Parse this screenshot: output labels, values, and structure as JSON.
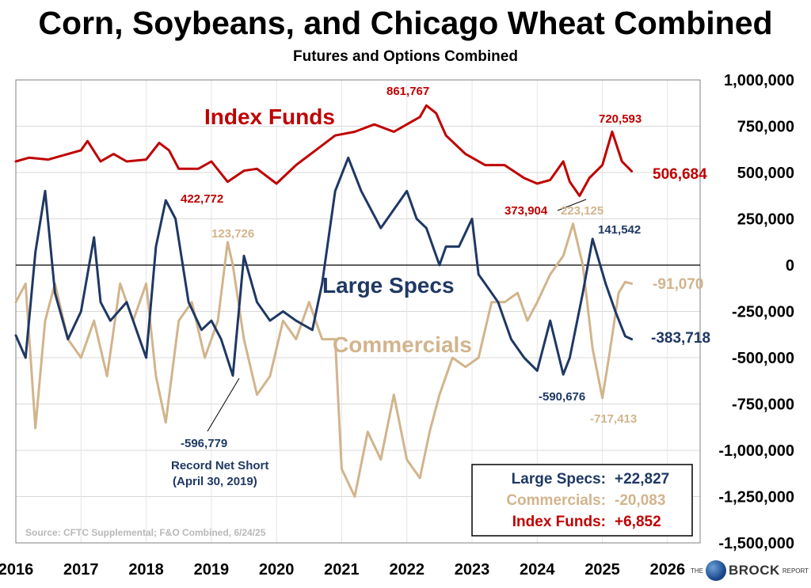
{
  "chart_data": {
    "type": "line",
    "title": "Corn, Soybeans, and Chicago Wheat Combined",
    "subtitle": "Futures and Options Combined",
    "source": "Source: CFTC Supplemental; F&O Combined, 6/24/25",
    "x_ticks": [
      "2016",
      "2017",
      "2018",
      "2019",
      "2020",
      "2021",
      "2022",
      "2023",
      "2024",
      "2025",
      "2026"
    ],
    "y_ticks": [
      "1,000,000",
      "750,000",
      "500,000",
      "250,000",
      "0",
      "-250,000",
      "-500,000",
      "-750,000",
      "-1,000,000",
      "-1,250,000",
      "-1,500,000"
    ],
    "xlim": [
      2016.0,
      2026.5
    ],
    "ylim": [
      -1500000,
      1000000
    ],
    "grid": true,
    "series": [
      {
        "name": "Index Funds",
        "color": "#c00000",
        "x": [
          2016.0,
          2016.2,
          2016.5,
          2016.8,
          2017.0,
          2017.1,
          2017.3,
          2017.5,
          2017.7,
          2018.0,
          2018.2,
          2018.35,
          2018.5,
          2018.8,
          2019.0,
          2019.25,
          2019.5,
          2019.7,
          2020.0,
          2020.3,
          2020.6,
          2020.9,
          2021.2,
          2021.5,
          2021.8,
          2022.0,
          2022.2,
          2022.3,
          2022.45,
          2022.6,
          2022.9,
          2023.2,
          2023.5,
          2023.8,
          2024.0,
          2024.2,
          2024.4,
          2024.5,
          2024.65,
          2024.8,
          2025.0,
          2025.15,
          2025.3,
          2025.45
        ],
        "values": [
          560000,
          580000,
          570000,
          600000,
          620000,
          670000,
          560000,
          600000,
          560000,
          570000,
          660000,
          620000,
          520000,
          520000,
          560000,
          450000,
          510000,
          520000,
          440000,
          540000,
          620000,
          700000,
          720000,
          760000,
          720000,
          760000,
          800000,
          861767,
          820000,
          700000,
          600000,
          540000,
          540000,
          470000,
          440000,
          460000,
          560000,
          450000,
          373904,
          470000,
          540000,
          720593,
          560000,
          506684
        ]
      },
      {
        "name": "Large Specs",
        "color": "#1f3864",
        "x": [
          2016.0,
          2016.15,
          2016.3,
          2016.45,
          2016.6,
          2016.8,
          2017.0,
          2017.2,
          2017.3,
          2017.45,
          2017.7,
          2017.9,
          2018.0,
          2018.15,
          2018.3,
          2018.45,
          2018.65,
          2018.85,
          2019.0,
          2019.15,
          2019.33,
          2019.5,
          2019.7,
          2019.9,
          2020.1,
          2020.3,
          2020.55,
          2020.7,
          2020.9,
          2021.1,
          2021.3,
          2021.6,
          2021.8,
          2022.0,
          2022.15,
          2022.3,
          2022.5,
          2022.6,
          2022.8,
          2023.0,
          2023.1,
          2023.2,
          2023.4,
          2023.6,
          2023.8,
          2024.0,
          2024.2,
          2024.4,
          2024.5,
          2024.7,
          2024.85,
          2025.05,
          2025.2,
          2025.35,
          2025.45
        ],
        "values": [
          -380000,
          -500000,
          70000,
          400000,
          -150000,
          -400000,
          -250000,
          150000,
          -200000,
          -300000,
          -200000,
          -400000,
          -500000,
          100000,
          350000,
          250000,
          -200000,
          -350000,
          -300000,
          -400000,
          -596779,
          50000,
          -200000,
          -300000,
          -250000,
          -300000,
          -350000,
          -100000,
          400000,
          580000,
          400000,
          200000,
          300000,
          400000,
          250000,
          200000,
          0,
          100000,
          100000,
          250000,
          -50000,
          -100000,
          -200000,
          -400000,
          -500000,
          -570000,
          -300000,
          -590676,
          -500000,
          -150000,
          141542,
          -100000,
          -250000,
          -383718,
          -400000
        ]
      },
      {
        "name": "Commercials",
        "color": "#d2b48c",
        "x": [
          2016.0,
          2016.15,
          2016.3,
          2016.45,
          2016.6,
          2016.8,
          2017.0,
          2017.2,
          2017.4,
          2017.6,
          2017.8,
          2018.0,
          2018.15,
          2018.3,
          2018.5,
          2018.7,
          2018.9,
          2019.1,
          2019.25,
          2019.33,
          2019.5,
          2019.7,
          2019.9,
          2020.1,
          2020.3,
          2020.5,
          2020.7,
          2020.9,
          2021.0,
          2021.2,
          2021.4,
          2021.6,
          2021.8,
          2022.0,
          2022.2,
          2022.35,
          2022.5,
          2022.7,
          2022.9,
          2023.1,
          2023.3,
          2023.5,
          2023.7,
          2023.85,
          2024.0,
          2024.2,
          2024.4,
          2024.55,
          2024.7,
          2024.85,
          2025.0,
          2025.1,
          2025.25,
          2025.35,
          2025.45
        ],
        "values": [
          -200000,
          -100000,
          -880000,
          -300000,
          -100000,
          -400000,
          -500000,
          -300000,
          -600000,
          -100000,
          -300000,
          -100000,
          -600000,
          -850000,
          -300000,
          -200000,
          -500000,
          -300000,
          123726,
          0,
          -400000,
          -700000,
          -600000,
          -300000,
          -400000,
          -200000,
          -400000,
          -400000,
          -1100000,
          -1250000,
          -900000,
          -1050000,
          -700000,
          -1050000,
          -1150000,
          -900000,
          -700000,
          -500000,
          -550000,
          -500000,
          -200000,
          -200000,
          -150000,
          -300000,
          -200000,
          -50000,
          50000,
          223125,
          0,
          -450000,
          -717413,
          -500000,
          -150000,
          -91070,
          -100000
        ]
      }
    ],
    "labels": {
      "index_funds": "Index Funds",
      "large_specs": "Large Specs",
      "commercials": "Commercials"
    },
    "annotations": {
      "if_peak": "861,767",
      "if_2025": "720,593",
      "if_last": "506,684",
      "if_2018": "422,772",
      "if_low": "373,904",
      "com_2024": "223,125",
      "ls_2025": "141,542",
      "com_2019": "123,726",
      "com_last": "-91,070",
      "ls_last": "-383,718",
      "ls_2024": "-590,676",
      "com_2025": "-717,413",
      "ls_2019": "-596,779",
      "record_line1": "Record Net Short",
      "record_line2": "(April 30, 2019)"
    },
    "legend_box": {
      "rows": [
        {
          "label": "Large Specs:",
          "value": "+22,827",
          "color": "#1f3864"
        },
        {
          "label": "Commercials:",
          "value": "-20,083",
          "color": "#d2b48c"
        },
        {
          "label": "Index Funds:",
          "value": "+6,852",
          "color": "#c00000"
        }
      ]
    }
  },
  "logo": {
    "the": "THE",
    "brock": "BROCK",
    "report": "REPORT"
  }
}
